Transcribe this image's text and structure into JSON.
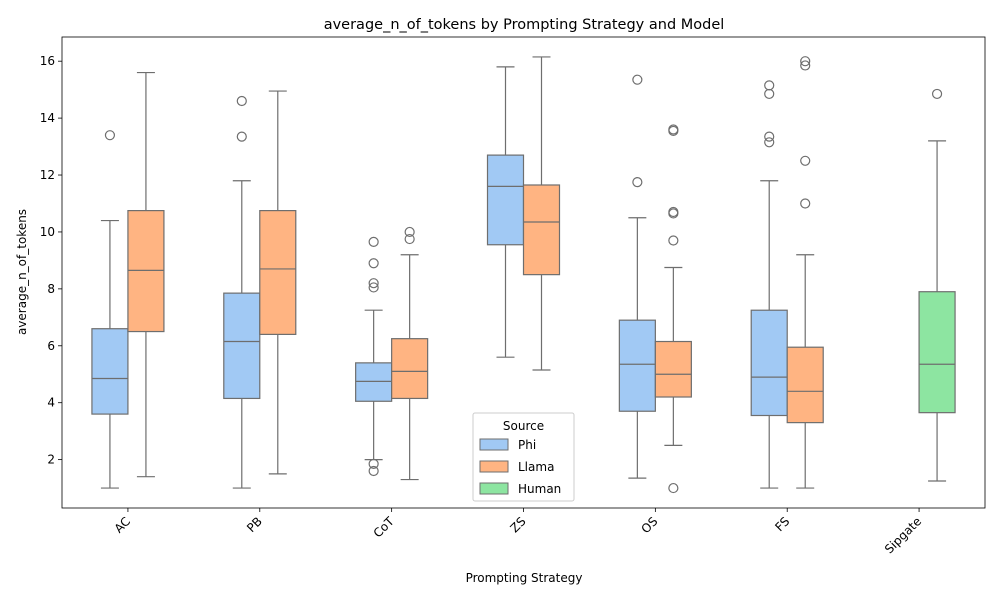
{
  "chart_data": {
    "type": "box",
    "title": "average_n_of_tokens by Prompting Strategy and Model",
    "xlabel": "Prompting Strategy",
    "ylabel": "average_n_of_tokens",
    "categories": [
      "AC",
      "PB",
      "CoT",
      "ZS",
      "OS",
      "FS",
      "Sipgate"
    ],
    "y_ticks": [
      "2",
      "4",
      "6",
      "8",
      "10",
      "12",
      "14",
      "16"
    ],
    "ylim": [
      0.3,
      16.85
    ],
    "grid": false,
    "legend": {
      "title": "Source",
      "placement": "lower center"
    },
    "series": [
      {
        "name": "Phi",
        "color": "#a1c9f4",
        "boxes": [
          {
            "category": "AC",
            "whislo": 1.0,
            "q1": 3.6,
            "med": 4.85,
            "q3": 6.6,
            "whishi": 10.4,
            "fliers": [
              13.4
            ]
          },
          {
            "category": "PB",
            "whislo": 1.0,
            "q1": 4.15,
            "med": 6.15,
            "q3": 7.85,
            "whishi": 11.8,
            "fliers": [
              13.35,
              14.6
            ]
          },
          {
            "category": "CoT",
            "whislo": 2.0,
            "q1": 4.05,
            "med": 4.75,
            "q3": 5.4,
            "whishi": 7.25,
            "fliers": [
              1.6,
              1.85,
              8.05,
              8.2,
              8.9,
              9.65
            ]
          },
          {
            "category": "ZS",
            "whislo": 5.6,
            "q1": 9.55,
            "med": 11.6,
            "q3": 12.7,
            "whishi": 15.8,
            "fliers": []
          },
          {
            "category": "OS",
            "whislo": 1.35,
            "q1": 3.7,
            "med": 5.35,
            "q3": 6.9,
            "whishi": 10.5,
            "fliers": [
              11.75,
              15.35
            ]
          },
          {
            "category": "FS",
            "whislo": 1.0,
            "q1": 3.55,
            "med": 4.9,
            "q3": 7.25,
            "whishi": 11.8,
            "fliers": [
              13.15,
              13.35,
              14.85,
              15.15
            ]
          }
        ]
      },
      {
        "name": "Llama",
        "color": "#ffb482",
        "boxes": [
          {
            "category": "AC",
            "whislo": 1.4,
            "q1": 6.5,
            "med": 8.65,
            "q3": 10.75,
            "whishi": 15.6,
            "fliers": []
          },
          {
            "category": "PB",
            "whislo": 1.5,
            "q1": 6.4,
            "med": 8.7,
            "q3": 10.75,
            "whishi": 14.95,
            "fliers": []
          },
          {
            "category": "CoT",
            "whislo": 1.3,
            "q1": 4.15,
            "med": 5.1,
            "q3": 6.25,
            "whishi": 9.2,
            "fliers": [
              9.75,
              10.0
            ]
          },
          {
            "category": "ZS",
            "whislo": 5.15,
            "q1": 8.5,
            "med": 10.35,
            "q3": 11.65,
            "whishi": 16.15,
            "fliers": []
          },
          {
            "category": "OS",
            "whislo": 2.5,
            "q1": 4.2,
            "med": 5.0,
            "q3": 6.15,
            "whishi": 8.75,
            "fliers": [
              1.0,
              9.7,
              10.65,
              10.7,
              13.55,
              13.6
            ]
          },
          {
            "category": "FS",
            "whislo": 1.0,
            "q1": 3.3,
            "med": 4.4,
            "q3": 5.95,
            "whishi": 9.2,
            "fliers": [
              11.0,
              12.5,
              15.85,
              16.0
            ]
          }
        ]
      },
      {
        "name": "Human",
        "color": "#8de5a1",
        "boxes": [
          {
            "category": "Sipgate",
            "whislo": 1.25,
            "q1": 3.65,
            "med": 5.35,
            "q3": 7.9,
            "whishi": 13.2,
            "fliers": [
              14.85
            ]
          }
        ]
      }
    ]
  }
}
